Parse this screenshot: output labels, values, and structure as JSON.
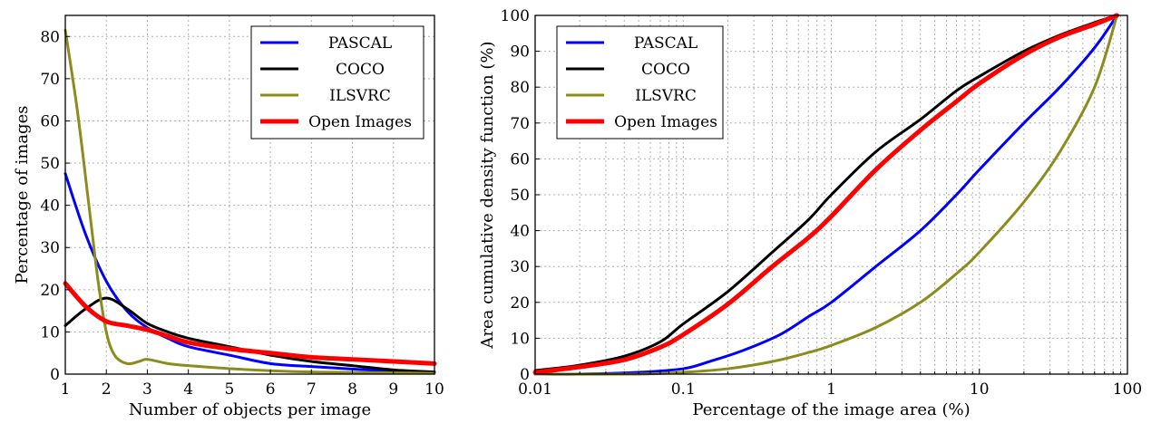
{
  "chart_data": [
    {
      "type": "line",
      "xlabel": "Number of objects per image",
      "ylabel": "Percentage of images",
      "xlim": [
        1,
        10
      ],
      "ylim": [
        0,
        85
      ],
      "xticks": [
        1,
        2,
        3,
        4,
        5,
        6,
        7,
        8,
        9,
        10
      ],
      "yticks": [
        0,
        10,
        20,
        30,
        40,
        50,
        60,
        70,
        80
      ],
      "grid": true,
      "legend_position": "top-right",
      "series": [
        {
          "name": "PASCAL",
          "color": "#0000ff",
          "x": [
            1,
            1.5,
            2,
            2.5,
            3,
            3.5,
            4,
            5,
            6,
            7,
            8,
            9,
            10
          ],
          "y": [
            47.5,
            33,
            22,
            15,
            11,
            8.5,
            6.5,
            4.5,
            2.5,
            1.8,
            1.2,
            0.7,
            0.4
          ]
        },
        {
          "name": "COCO",
          "color": "#000000",
          "x": [
            1,
            1.5,
            2,
            2.5,
            3,
            3.5,
            4,
            5,
            6,
            7,
            8,
            9,
            10
          ],
          "y": [
            11.5,
            15.5,
            18,
            15.5,
            12,
            10,
            8.5,
            6.5,
            4.5,
            3,
            2,
            1,
            0.5
          ]
        },
        {
          "name": "ILSVRC",
          "color": "#8c8c1e",
          "x": [
            1,
            1.3,
            1.6,
            1.8,
            2,
            2.2,
            2.5,
            2.8,
            3,
            3.5,
            4,
            5,
            6,
            7,
            8,
            9,
            10
          ],
          "y": [
            81.5,
            62,
            38,
            22,
            10,
            4.5,
            2.5,
            3,
            3.5,
            2.5,
            2,
            1.3,
            0.8,
            0.5,
            0.4,
            0.3,
            0.2
          ]
        },
        {
          "name": "Open Images",
          "color": "#ff0000",
          "x": [
            1,
            1.5,
            2,
            2.5,
            3,
            3.5,
            4,
            5,
            6,
            7,
            8,
            9,
            10
          ],
          "y": [
            21.5,
            16,
            12.5,
            11.5,
            10.5,
            9,
            7.5,
            6,
            5,
            4,
            3.5,
            3,
            2.5
          ]
        }
      ]
    },
    {
      "type": "line",
      "xscale": "log",
      "xlabel": "Percentage of the image area (%)",
      "ylabel": "Area cumulative density function (%)",
      "xlim": [
        0.01,
        100
      ],
      "ylim": [
        0,
        100
      ],
      "xticks": [
        "0.01",
        "0.1",
        "1",
        "10",
        "100"
      ],
      "yticks": [
        0,
        10,
        20,
        30,
        40,
        50,
        60,
        70,
        80,
        90,
        100
      ],
      "grid": true,
      "legend_position": "top-left",
      "series": [
        {
          "name": "PASCAL",
          "color": "#0000ff",
          "x": [
            0.01,
            0.02,
            0.05,
            0.1,
            0.15,
            0.25,
            0.45,
            0.7,
            1,
            2,
            4,
            7,
            10,
            20,
            35,
            60,
            85
          ],
          "y": [
            0,
            0,
            0.5,
            1.5,
            3.5,
            6.5,
            11,
            16,
            20,
            30,
            40,
            50,
            57,
            70,
            80,
            91,
            100
          ]
        },
        {
          "name": "COCO",
          "color": "#000000",
          "x": [
            0.01,
            0.02,
            0.04,
            0.07,
            0.1,
            0.2,
            0.4,
            0.7,
            1,
            2,
            4,
            7,
            10,
            20,
            35,
            60,
            85
          ],
          "y": [
            1,
            2.5,
            5,
            9,
            14,
            23,
            34,
            43,
            50,
            62,
            71,
            79,
            83,
            90,
            94.5,
            98,
            100
          ]
        },
        {
          "name": "ILSVRC",
          "color": "#8c8c1e",
          "x": [
            0.01,
            0.05,
            0.1,
            0.2,
            0.4,
            0.7,
            1,
            2,
            4,
            7,
            10,
            20,
            35,
            60,
            85
          ],
          "y": [
            0,
            0,
            0.5,
            1.5,
            3.5,
            6,
            8,
            13,
            20,
            28,
            34,
            48,
            62,
            80,
            100
          ]
        },
        {
          "name": "Open Images",
          "color": "#ff0000",
          "x": [
            0.01,
            0.02,
            0.04,
            0.07,
            0.1,
            0.2,
            0.4,
            0.7,
            1,
            2,
            4,
            7,
            10,
            20,
            35,
            60,
            85
          ],
          "y": [
            0.5,
            2,
            4,
            7.5,
            11,
            19.5,
            30,
            38,
            44,
            57,
            68,
            76,
            81,
            89,
            94,
            97.5,
            100
          ]
        }
      ]
    }
  ]
}
